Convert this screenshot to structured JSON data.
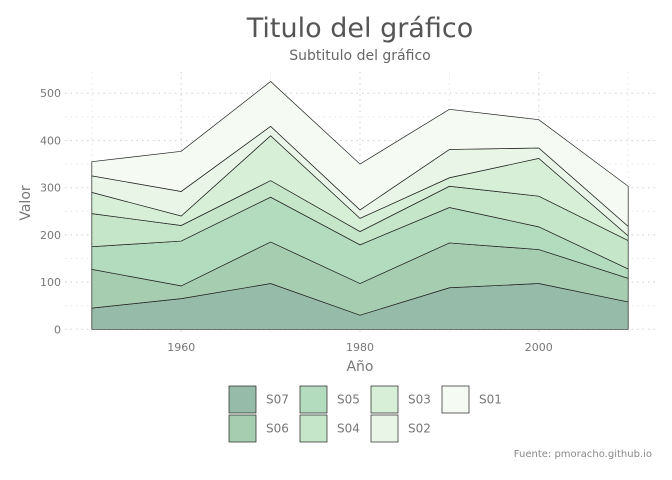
{
  "chart_data": {
    "type": "area",
    "stacked": true,
    "title": "Titulo del gráfico",
    "subtitle": "Subtitulo del gráfico",
    "xlabel": "Año",
    "ylabel": "Valor",
    "caption": "Fuente: pmoracho.github.io",
    "x": [
      1950,
      1960,
      1970,
      1980,
      1990,
      2000,
      2010
    ],
    "xlim": [
      1947,
      2013
    ],
    "xticks": [
      1960,
      1980,
      2000
    ],
    "ylim": [
      -12,
      545
    ],
    "yticks": [
      0,
      100,
      200,
      300,
      400,
      500
    ],
    "grid": true,
    "legend_position": "bottom",
    "series": [
      {
        "name": "S07",
        "color": "#97bba9",
        "values": [
          45,
          65,
          97,
          30,
          88,
          97,
          58
        ]
      },
      {
        "name": "S06",
        "color": "#a7cdb1",
        "values": [
          82,
          27,
          88,
          67,
          95,
          72,
          50
        ]
      },
      {
        "name": "S05",
        "color": "#b3dbbe",
        "values": [
          48,
          95,
          95,
          82,
          75,
          48,
          20
        ]
      },
      {
        "name": "S04",
        "color": "#c6e6c9",
        "values": [
          70,
          33,
          35,
          28,
          45,
          65,
          60
        ]
      },
      {
        "name": "S03",
        "color": "#d6efd6",
        "values": [
          45,
          20,
          95,
          28,
          18,
          80,
          10
        ]
      },
      {
        "name": "S02",
        "color": "#e9f6e7",
        "values": [
          35,
          52,
          20,
          18,
          60,
          22,
          20
        ]
      },
      {
        "name": "S01",
        "color": "#f5fbf3",
        "values": [
          30,
          85,
          95,
          97,
          85,
          60,
          85
        ]
      }
    ]
  }
}
